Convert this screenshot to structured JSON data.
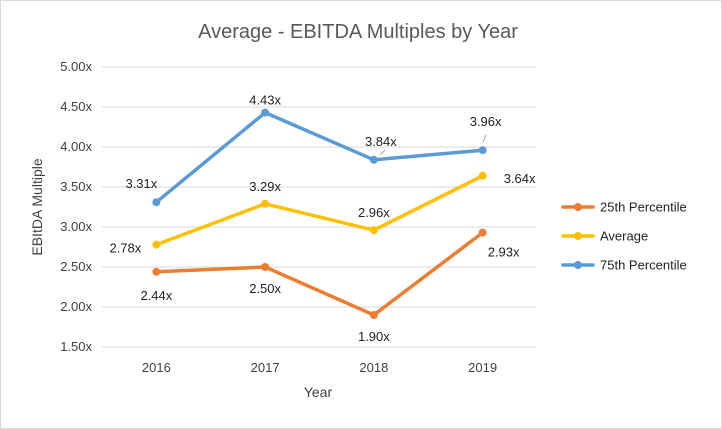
{
  "chart_data": {
    "type": "line",
    "title": "Average - EBITDA Multiples by Year",
    "xlabel": "Year",
    "ylabel": "EBItDA Multiple",
    "categories": [
      "2016",
      "2017",
      "2018",
      "2019"
    ],
    "ylim": [
      1.5,
      5.0
    ],
    "y_ticks": [
      "1.50x",
      "2.00x",
      "2.50x",
      "3.00x",
      "3.50x",
      "4.00x",
      "4.50x",
      "5.00x"
    ],
    "y_tick_values": [
      1.5,
      2.0,
      2.5,
      3.0,
      3.5,
      4.0,
      4.5,
      5.0
    ],
    "grid": true,
    "legend_position": "right",
    "series": [
      {
        "name": "25th Percentile",
        "color": "#ED7D31",
        "values": [
          2.44,
          2.5,
          1.9,
          2.93
        ],
        "labels": [
          "2.44x",
          "2.50x",
          "1.90x",
          "2.93x"
        ]
      },
      {
        "name": "Average",
        "color": "#FFC000",
        "values": [
          2.78,
          3.29,
          2.96,
          3.64
        ],
        "labels": [
          "2.78x",
          "3.29x",
          "2.96x",
          "3.64x"
        ]
      },
      {
        "name": "75th Percentile",
        "color": "#5B9BD5",
        "values": [
          3.31,
          4.43,
          3.84,
          3.96
        ],
        "labels": [
          "3.31x",
          "4.43x",
          "3.84x",
          "3.96x"
        ]
      }
    ]
  }
}
